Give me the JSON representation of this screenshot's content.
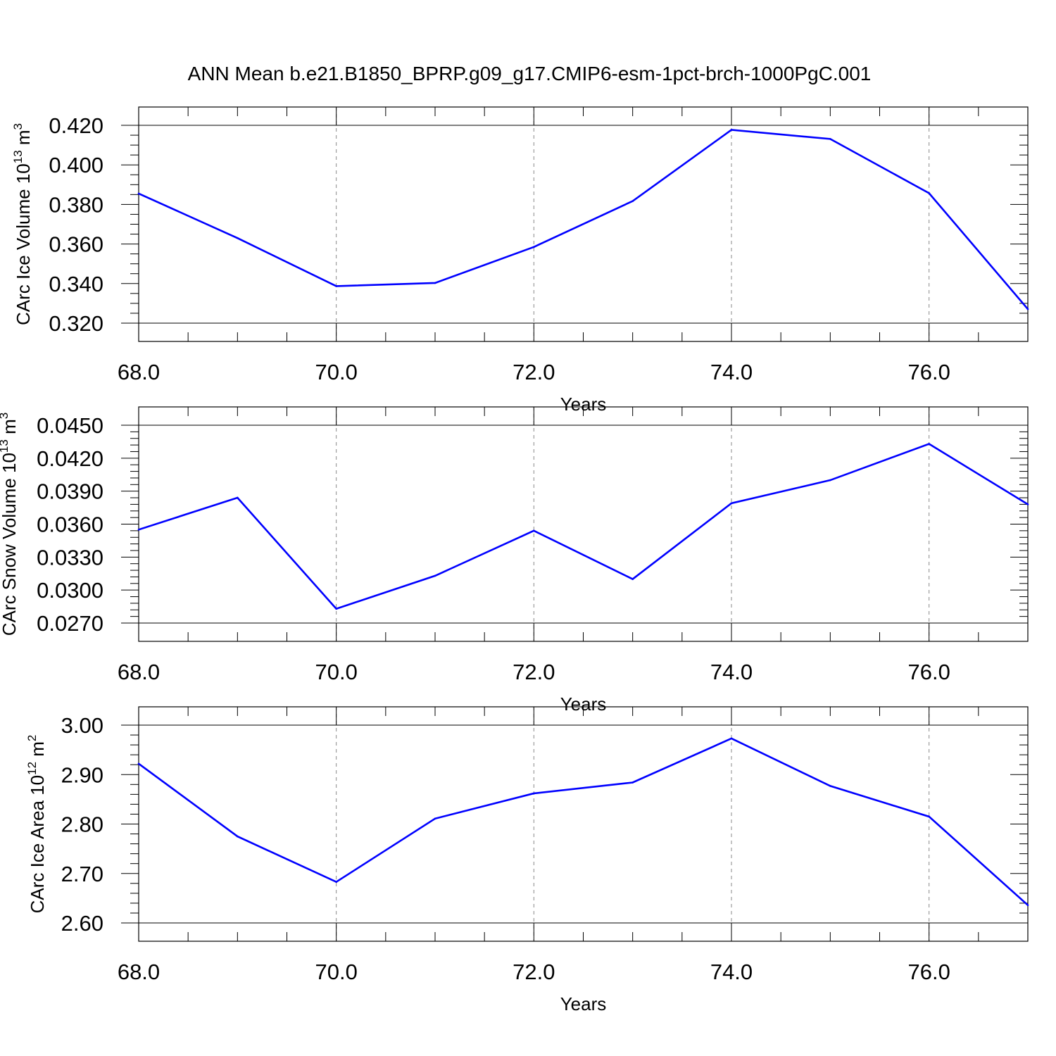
{
  "title": "ANN Mean b.e21.B1850_BPRP.g09_g17.CMIP6-esm-1pct-brch-1000PgC.001",
  "colors": {
    "series": "#0000ff",
    "grid": "#888888",
    "axes": "#000000"
  },
  "chart_data": [
    {
      "type": "line",
      "ylabel": {
        "text": "CArc Ice Volume 10",
        "sup": "13",
        "unit": " m",
        "unit_sup": "3"
      },
      "xlabel": "Years",
      "xlim": [
        68,
        77
      ],
      "ylim": [
        0.32,
        0.42
      ],
      "xticks": [
        68,
        70,
        72,
        74,
        76
      ],
      "xtick_labels": [
        "68.0",
        "70.0",
        "72.0",
        "74.0",
        "76.0"
      ],
      "yticks": [
        0.32,
        0.34,
        0.36,
        0.38,
        0.4,
        0.42
      ],
      "ytick_labels": [
        "0.320",
        "0.340",
        "0.360",
        "0.380",
        "0.400",
        "0.420"
      ],
      "x_minor_step": 0.5,
      "y_minor_step": 0.005,
      "grid": "x-major dashed",
      "x": [
        68,
        69,
        70,
        71,
        72,
        73,
        74,
        75,
        76,
        77
      ],
      "series": [
        {
          "values": [
            0.3855,
            0.363,
            0.3387,
            0.3403,
            0.3585,
            0.3817,
            0.4177,
            0.4131,
            0.3857,
            0.3271
          ]
        }
      ]
    },
    {
      "type": "line",
      "ylabel": {
        "text": "CArc Snow Volume 10",
        "sup": "13",
        "unit": " m",
        "unit_sup": "3"
      },
      "xlabel": "Years",
      "xlim": [
        68,
        77
      ],
      "ylim": [
        0.027,
        0.045
      ],
      "xticks": [
        68,
        70,
        72,
        74,
        76
      ],
      "xtick_labels": [
        "68.0",
        "70.0",
        "72.0",
        "74.0",
        "76.0"
      ],
      "yticks": [
        0.027,
        0.03,
        0.033,
        0.036,
        0.039,
        0.042,
        0.045
      ],
      "ytick_labels": [
        "0.0270",
        "0.0300",
        "0.0330",
        "0.0360",
        "0.0390",
        "0.0420",
        "0.0450"
      ],
      "x_minor_step": 0.5,
      "y_minor_step": 0.0006,
      "grid": "x-major dashed",
      "x": [
        68,
        69,
        70,
        71,
        72,
        73,
        74,
        75,
        76,
        77
      ],
      "series": [
        {
          "values": [
            0.0355,
            0.0384,
            0.0283,
            0.0313,
            0.0354,
            0.031,
            0.0379,
            0.04,
            0.0433,
            0.0378
          ]
        }
      ]
    },
    {
      "type": "line",
      "ylabel": {
        "text": "CArc Ice Area 10",
        "sup": "12",
        "unit": " m",
        "unit_sup": "2"
      },
      "xlabel": "Years",
      "xlim": [
        68,
        77
      ],
      "ylim": [
        2.6,
        3.0
      ],
      "xticks": [
        68,
        70,
        72,
        74,
        76
      ],
      "xtick_labels": [
        "68.0",
        "70.0",
        "72.0",
        "74.0",
        "76.0"
      ],
      "yticks": [
        2.6,
        2.7,
        2.8,
        2.9,
        3.0
      ],
      "ytick_labels": [
        "2.60",
        "2.70",
        "2.80",
        "2.90",
        "3.00"
      ],
      "x_minor_step": 0.5,
      "y_minor_step": 0.02,
      "grid": "x-major dashed",
      "x": [
        68,
        69,
        70,
        71,
        72,
        73,
        74,
        75,
        76,
        77
      ],
      "series": [
        {
          "values": [
            2.922,
            2.775,
            2.683,
            2.811,
            2.862,
            2.884,
            2.973,
            2.877,
            2.815,
            2.636
          ]
        }
      ]
    }
  ]
}
